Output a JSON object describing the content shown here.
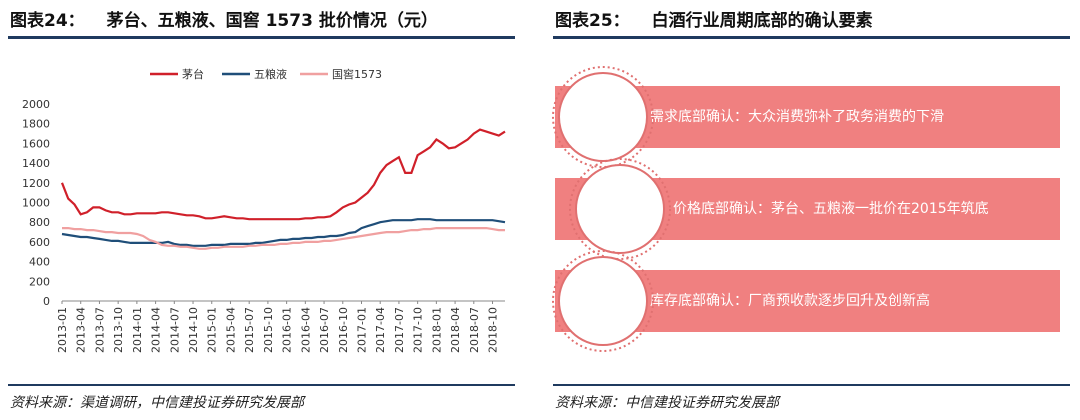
{
  "left": {
    "fig_num": "图表24：",
    "fig_title": "茅台、五粮液、国窖 1573 批价情况（元）",
    "source": "资料来源：渠道调研，中信建投证券研究发展部"
  },
  "right": {
    "fig_num": "图表25：",
    "fig_title": "白酒行业周期底部的确认要素",
    "source": "资料来源：中信建投证券研究发展部",
    "items": [
      {
        "text": "需求底部确认：大众消费弥补了政务消费的下滑"
      },
      {
        "text": "价格底部确认：茅台、五粮液一批价在2015年筑底"
      },
      {
        "text": "库存底部确认：厂商预收款逐步回升及创新高"
      }
    ]
  },
  "chart_data": {
    "type": "line",
    "title": "",
    "xlabel": "",
    "ylabel": "",
    "ylim": [
      0,
      2000
    ],
    "yticks": [
      0,
      200,
      400,
      600,
      800,
      1000,
      1200,
      1400,
      1600,
      1800,
      2000
    ],
    "x": [
      "2013-01",
      "2013-02",
      "2013-03",
      "2013-04",
      "2013-05",
      "2013-06",
      "2013-07",
      "2013-08",
      "2013-09",
      "2013-10",
      "2013-11",
      "2013-12",
      "2014-01",
      "2014-02",
      "2014-03",
      "2014-04",
      "2014-05",
      "2014-06",
      "2014-07",
      "2014-08",
      "2014-09",
      "2014-10",
      "2014-11",
      "2014-12",
      "2015-01",
      "2015-02",
      "2015-03",
      "2015-04",
      "2015-05",
      "2015-06",
      "2015-07",
      "2015-08",
      "2015-09",
      "2015-10",
      "2015-11",
      "2015-12",
      "2016-01",
      "2016-02",
      "2016-03",
      "2016-04",
      "2016-05",
      "2016-06",
      "2016-07",
      "2016-08",
      "2016-09",
      "2016-10",
      "2016-11",
      "2016-12",
      "2017-01",
      "2017-02",
      "2017-03",
      "2017-04",
      "2017-05",
      "2017-06",
      "2017-07",
      "2017-08",
      "2017-09",
      "2017-10",
      "2017-11",
      "2017-12",
      "2018-01",
      "2018-02",
      "2018-03",
      "2018-04",
      "2018-05",
      "2018-06",
      "2018-07",
      "2018-08",
      "2018-09",
      "2018-10",
      "2018-11",
      "2018-12"
    ],
    "x_tick_labels": [
      "2013-01",
      "2013-04",
      "2013-07",
      "2013-10",
      "2014-01",
      "2014-04",
      "2014-07",
      "2014-10",
      "2015-01",
      "2015-04",
      "2015-07",
      "2015-10",
      "2016-01",
      "2016-04",
      "2016-07",
      "2016-10",
      "2017-01",
      "2017-04",
      "2017-07",
      "2017-10",
      "2018-01",
      "2018-04",
      "2018-07",
      "2018-10"
    ],
    "legend_placement": "top",
    "grid": false,
    "series": [
      {
        "name": "茅台",
        "color": "#d0202a",
        "values": [
          1200,
          1040,
          980,
          880,
          900,
          950,
          950,
          920,
          900,
          900,
          880,
          880,
          890,
          890,
          890,
          890,
          900,
          900,
          890,
          880,
          870,
          870,
          860,
          840,
          840,
          850,
          860,
          850,
          840,
          840,
          830,
          830,
          830,
          830,
          830,
          830,
          830,
          830,
          830,
          840,
          840,
          850,
          850,
          860,
          900,
          950,
          980,
          1000,
          1050,
          1100,
          1180,
          1300,
          1380,
          1420,
          1460,
          1300,
          1300,
          1480,
          1520,
          1560,
          1640,
          1600,
          1550,
          1560,
          1600,
          1640,
          1700,
          1740,
          1720,
          1700,
          1680,
          1720
        ]
      },
      {
        "name": "五粮液",
        "color": "#1f4e79",
        "values": [
          680,
          670,
          660,
          650,
          650,
          640,
          630,
          620,
          610,
          610,
          600,
          590,
          590,
          590,
          590,
          590,
          590,
          600,
          580,
          570,
          570,
          560,
          560,
          560,
          570,
          570,
          570,
          580,
          580,
          580,
          580,
          590,
          590,
          600,
          610,
          620,
          620,
          630,
          630,
          640,
          640,
          650,
          650,
          660,
          660,
          670,
          690,
          700,
          740,
          760,
          780,
          800,
          810,
          820,
          820,
          820,
          820,
          830,
          830,
          830,
          820,
          820,
          820,
          820,
          820,
          820,
          820,
          820,
          820,
          820,
          810,
          800
        ]
      },
      {
        "name": "国窖1573",
        "color": "#f0a0a0",
        "values": [
          740,
          740,
          730,
          730,
          720,
          720,
          710,
          700,
          700,
          690,
          690,
          690,
          680,
          660,
          620,
          600,
          570,
          560,
          560,
          550,
          550,
          540,
          530,
          530,
          540,
          540,
          550,
          550,
          550,
          550,
          560,
          560,
          570,
          570,
          570,
          580,
          580,
          590,
          590,
          600,
          600,
          600,
          610,
          610,
          620,
          630,
          640,
          650,
          660,
          670,
          680,
          690,
          700,
          700,
          700,
          710,
          720,
          720,
          730,
          730,
          740,
          740,
          740,
          740,
          740,
          740,
          740,
          740,
          740,
          730,
          720,
          720
        ]
      }
    ]
  }
}
